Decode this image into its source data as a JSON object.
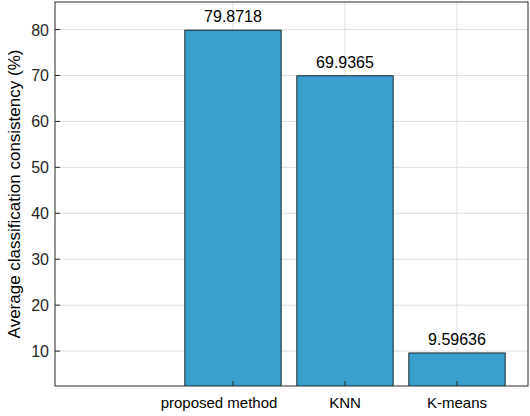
{
  "chart_data": {
    "type": "bar",
    "ylabel": "Average classification consistency (%)",
    "categories": [
      "proposed method",
      "KNN",
      "K-means"
    ],
    "values": [
      79.8718,
      69.9365,
      9.59636
    ],
    "color": "#3a9fcd",
    "ylim": [
      2.4,
      86
    ],
    "yticks": [
      10,
      20,
      30,
      40,
      50,
      60,
      70,
      80
    ],
    "grid": true,
    "data_labels": true
  }
}
